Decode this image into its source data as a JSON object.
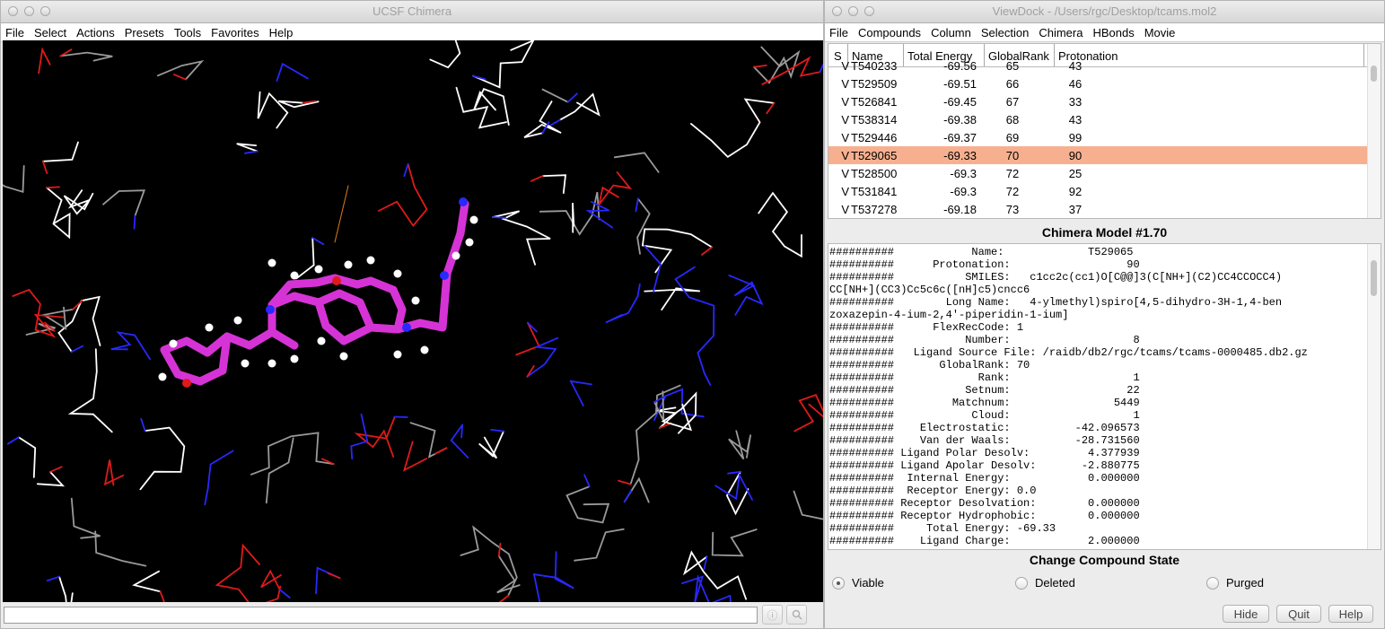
{
  "left_window": {
    "title": "UCSF Chimera",
    "menu": [
      "File",
      "Select",
      "Actions",
      "Presets",
      "Tools",
      "Favorites",
      "Help"
    ],
    "command_line": {
      "value": "",
      "placeholder": ""
    }
  },
  "right_window": {
    "title": "ViewDock - /Users/rgc/Desktop/tcams.mol2",
    "menu": [
      "File",
      "Compounds",
      "Column",
      "Selection",
      "Chimera",
      "HBonds",
      "Movie"
    ],
    "table": {
      "headers": [
        "S",
        "Name",
        "Total Energy",
        "GlobalRank",
        "Protonation"
      ],
      "rows": [
        [
          "V",
          "T540233",
          "-69.56",
          "65",
          "43"
        ],
        [
          "V",
          "T529509",
          "-69.51",
          "66",
          "46"
        ],
        [
          "V",
          "T526841",
          "-69.45",
          "67",
          "33"
        ],
        [
          "V",
          "T538314",
          "-69.38",
          "68",
          "43"
        ],
        [
          "V",
          "T529446",
          "-69.37",
          "69",
          "99"
        ],
        [
          "V",
          "T529065",
          "-69.33",
          "70",
          "90"
        ],
        [
          "V",
          "T528500",
          "-69.3",
          "72",
          "25"
        ],
        [
          "V",
          "T531841",
          "-69.3",
          "72",
          "92"
        ],
        [
          "V",
          "T537278",
          "-69.18",
          "73",
          "37"
        ]
      ],
      "selected_index": 5
    },
    "model_title": "Chimera Model #1.70",
    "model_info": [
      "##########            Name:             T529065",
      "##########      Protonation:                  90",
      "##########           SMILES:   c1cc2c(cc1)O[C@@]3(C[NH+](C2)CC4CCOCC4)",
      "CC[NH+](CC3)Cc5c6c([nH]c5)cncc6",
      "##########        Long Name:   4-ylmethyl)spiro[4,5-dihydro-3H-1,4-ben",
      "zoxazepin-4-ium-2,4'-piperidin-1-ium]",
      "##########      FlexRecCode: 1",
      "##########           Number:                   8",
      "##########   Ligand Source File: /raidb/db2/rgc/tcams/tcams-0000485.db2.gz",
      "##########       GlobalRank: 70",
      "##########             Rank:                   1",
      "##########           Setnum:                  22",
      "##########         Matchnum:                5449",
      "##########            Cloud:                   1",
      "##########    Electrostatic:          -42.096573",
      "##########    Van der Waals:          -28.731560",
      "########## Ligand Polar Desolv:         4.377939",
      "########## Ligand Apolar Desolv:       -2.880775",
      "##########  Internal Energy:            0.000000",
      "##########  Receptor Energy: 0.0",
      "########## Receptor Desolvation:        0.000000",
      "########## Receptor Hydrophobic:        0.000000",
      "##########     Total Energy: -69.33",
      "##########    Ligand Charge:            2.000000"
    ],
    "state_title": "Change Compound State",
    "states": [
      {
        "label": "Viable",
        "selected": true
      },
      {
        "label": "Deleted",
        "selected": false
      },
      {
        "label": "Purged",
        "selected": false
      }
    ],
    "buttons": {
      "hide": "Hide",
      "quit": "Quit",
      "help": "Help"
    }
  },
  "colors": {
    "selected_row": "#f7b08f",
    "ligand": "#d633d6",
    "nitrogen": "#2828ff",
    "oxygen": "#e01a1a",
    "viewport_bg": "#000000"
  }
}
